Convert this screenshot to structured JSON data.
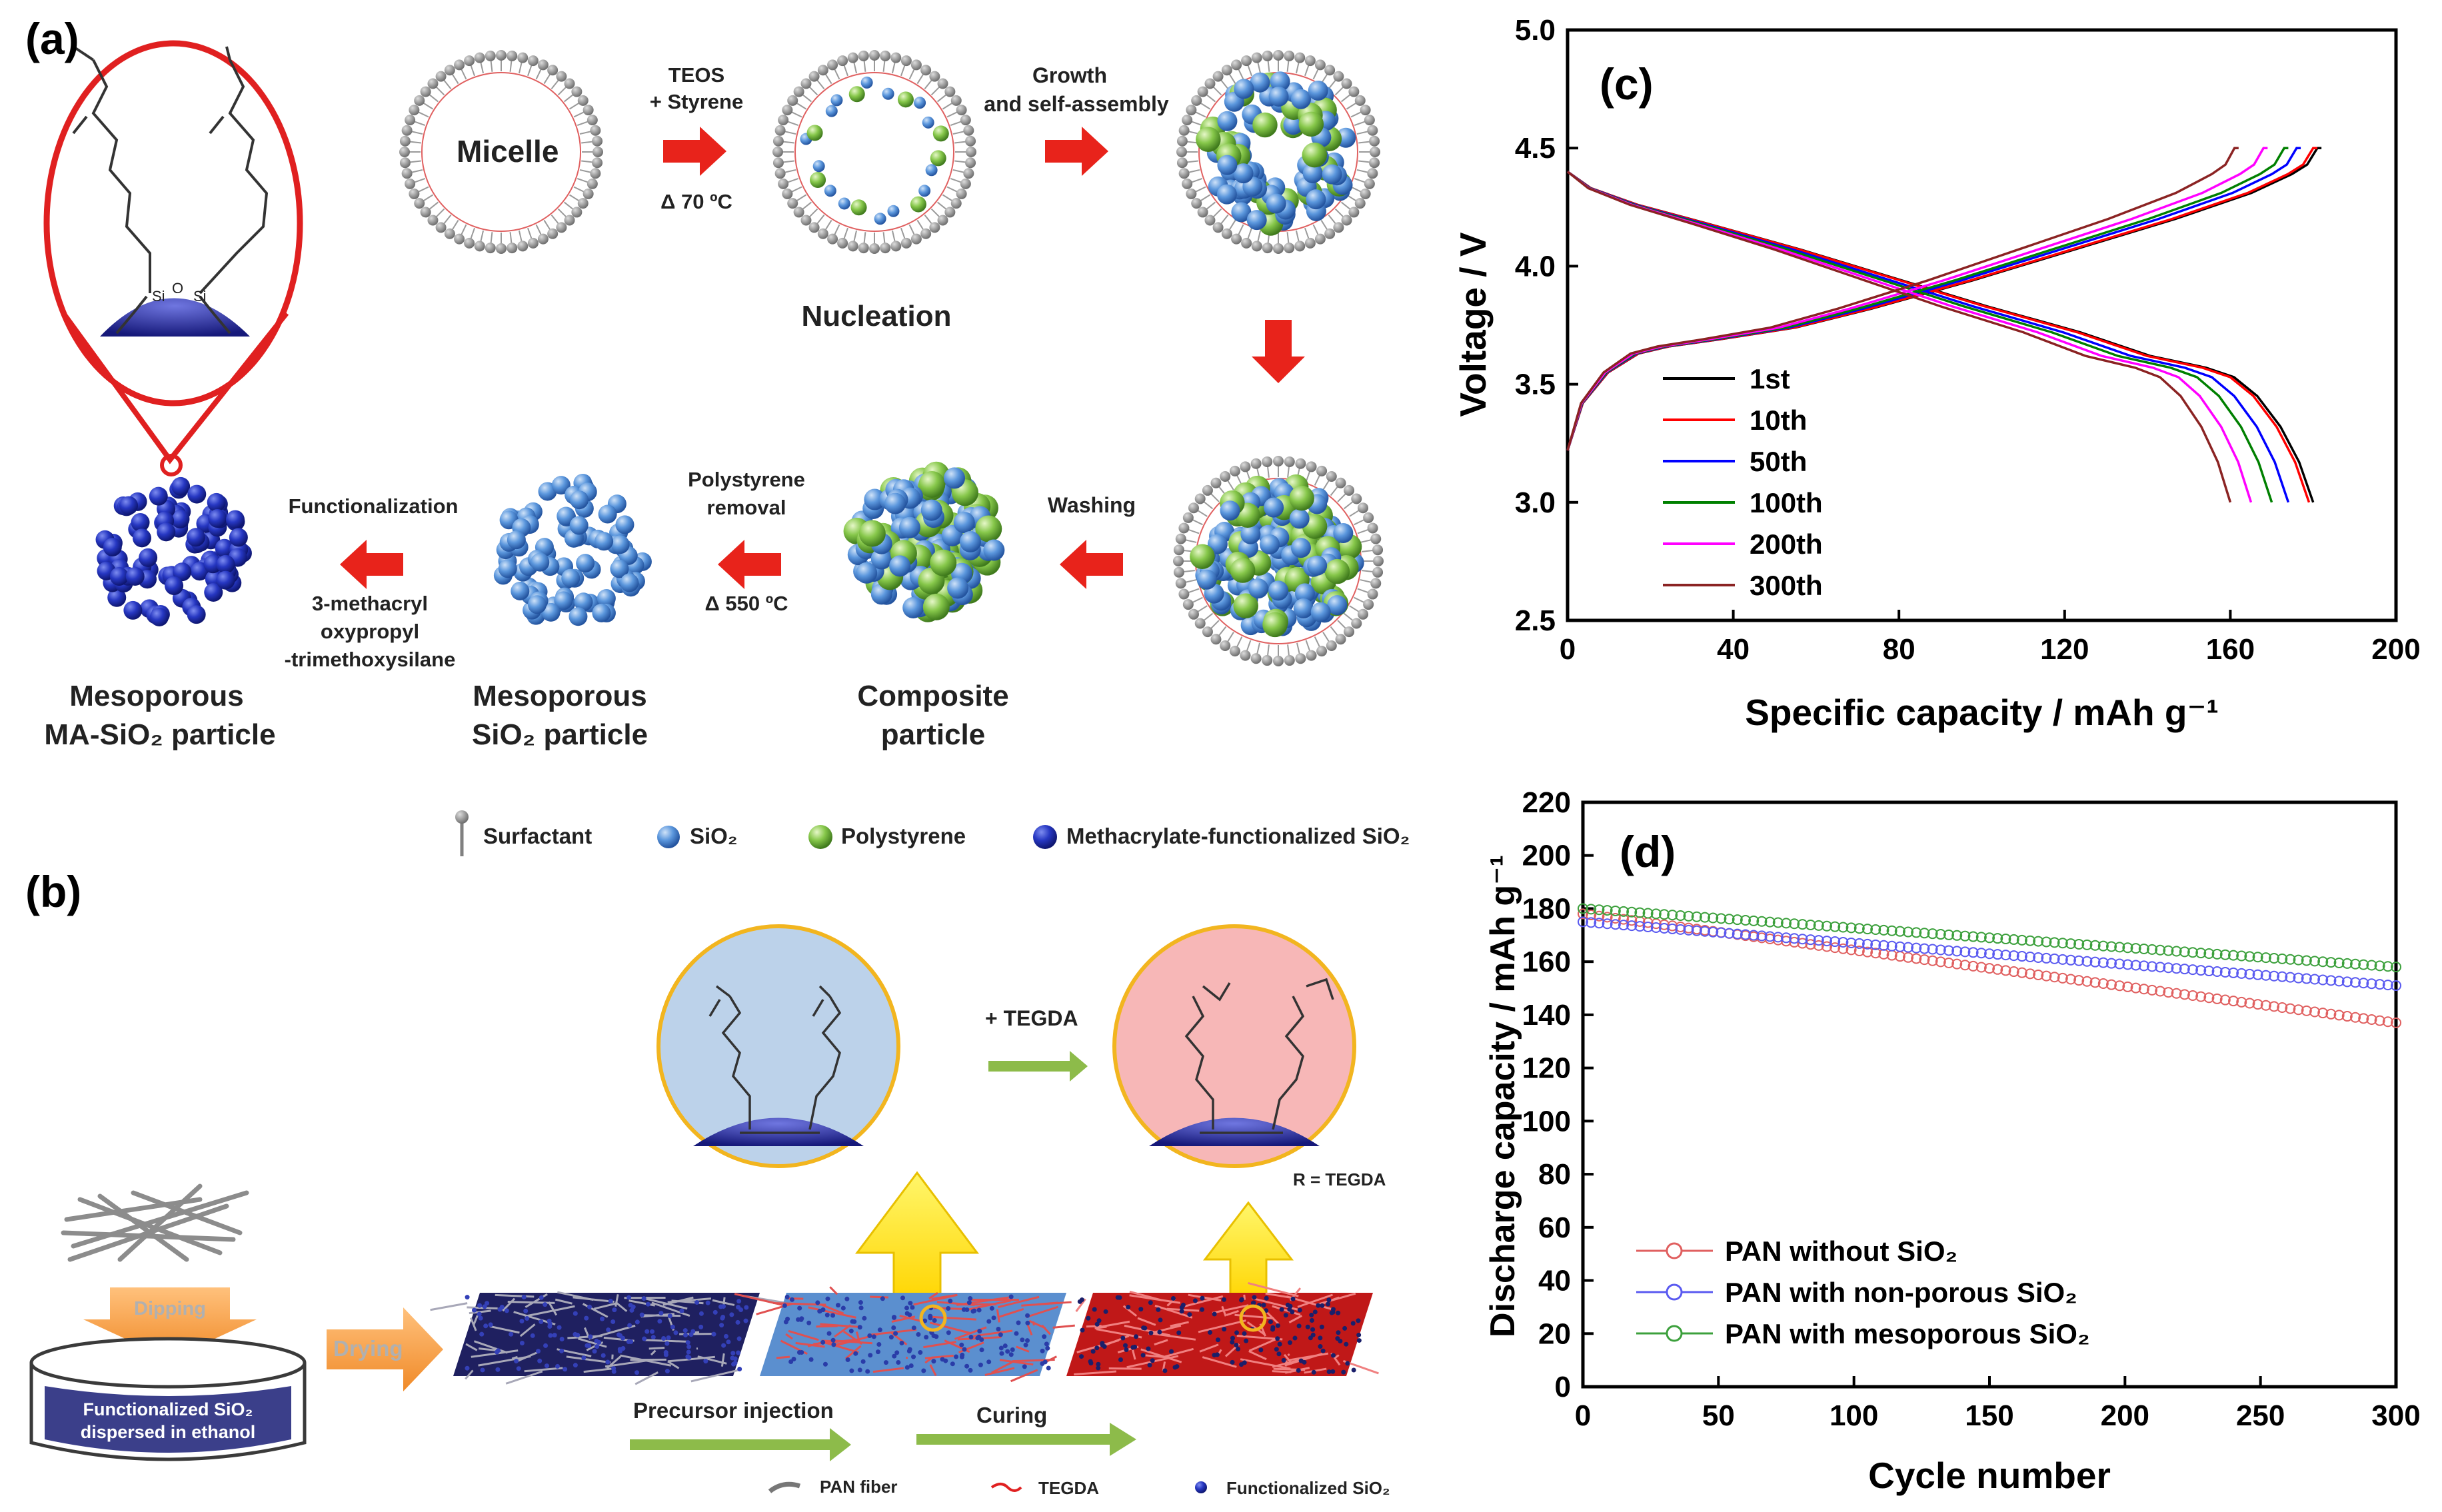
{
  "panel_a": {
    "label": "(a)",
    "micelle": "Micelle",
    "step1_l1": "TEOS",
    "step1_l2": "+ Styrene",
    "step1_temp": "Δ 70 ºC",
    "step2_l1": "Growth",
    "step2_l2": "and self-assembly",
    "nucleation": "Nucleation",
    "washing": "Washing",
    "composite_l1": "Composite",
    "composite_l2": "particle",
    "ps_l1": "Polystyrene",
    "ps_l2": "removal",
    "ps_temp": "Δ 550 ºC",
    "meso_l1": "Mesoporous",
    "meso_l2": "SiO₂ particle",
    "func": "Functionalization",
    "func_r1": "3-methacryl",
    "func_r2": "oxypropyl",
    "func_r3": "-trimethoxysilane",
    "mama_l1": "Mesoporous",
    "mama_l2": "MA-SiO₂ particle",
    "legend_surfactant": "Surfactant",
    "legend_sio2": "SiO₂",
    "legend_ps": "Polystyrene",
    "legend_ma": "Methacrylate-functionalized SiO₂",
    "colors": {
      "arrow": "#e8231b",
      "sio2": "#4a86d4",
      "ps": "#7dc243",
      "ma": "#1e2fa8",
      "surfactant": "#808080"
    }
  },
  "panel_b": {
    "label": "(b)",
    "tegda_step": "+ TEGDA",
    "r_eq": "R = TEGDA",
    "dipping": "Dipping",
    "solution_l1": "Functionalized SiO₂",
    "solution_l2": "dispersed in ethanol",
    "drying": "Drying",
    "precursor": "Precursor injection",
    "curing": "Curing",
    "legend_pan": "PAN fiber",
    "legend_tegda": "TEGDA",
    "legend_fsio2": "Functionalized SiO₂",
    "colors": {
      "green": "#8dbb4a",
      "orange": "#f39a3c",
      "yellow": "#ffe400",
      "blue_bg": "#bcd2ea",
      "pink_bg": "#f7b7b7"
    }
  },
  "panel_c": {
    "label": "(c)"
  },
  "panel_d": {
    "label": "(d)"
  },
  "chart_data": [
    {
      "type": "line",
      "id": "c",
      "xlabel": "Specific capacity / mAh g⁻¹",
      "ylabel": "Voltage / V",
      "xlim": [
        0,
        200
      ],
      "ylim": [
        2.5,
        5.0
      ],
      "xticks": [
        "0",
        "40",
        "80",
        "120",
        "160",
        "200"
      ],
      "yticks": [
        "2.5",
        "3.0",
        "3.5",
        "4.0",
        "4.5",
        "5.0"
      ],
      "series": [
        {
          "name": "1st",
          "color": "#000000",
          "charge_capacity": 181,
          "discharge_capacity": 180
        },
        {
          "name": "10th",
          "color": "#ff0000",
          "charge_capacity": 180,
          "discharge_capacity": 179
        },
        {
          "name": "50th",
          "color": "#0000ff",
          "charge_capacity": 176,
          "discharge_capacity": 174
        },
        {
          "name": "100th",
          "color": "#008000",
          "charge_capacity": 173,
          "discharge_capacity": 170
        },
        {
          "name": "200th",
          "color": "#ff00ff",
          "charge_capacity": 168,
          "discharge_capacity": 165
        },
        {
          "name": "300th",
          "color": "#8b2323",
          "charge_capacity": 161,
          "discharge_capacity": 160
        }
      ],
      "charge_profile": [
        [
          0,
          3.22
        ],
        [
          3,
          3.42
        ],
        [
          8,
          3.55
        ],
        [
          14,
          3.63
        ],
        [
          20,
          3.66
        ],
        [
          30,
          3.69
        ],
        [
          45,
          3.74
        ],
        [
          60,
          3.82
        ],
        [
          80,
          3.94
        ],
        [
          100,
          4.07
        ],
        [
          120,
          4.2
        ],
        [
          135,
          4.31
        ],
        [
          143,
          4.39
        ],
        [
          146,
          4.43
        ],
        [
          148,
          4.5
        ]
      ],
      "discharge_profile": [
        [
          0,
          4.4
        ],
        [
          5,
          4.33
        ],
        [
          15,
          4.26
        ],
        [
          30,
          4.18
        ],
        [
          50,
          4.07
        ],
        [
          70,
          3.95
        ],
        [
          90,
          3.83
        ],
        [
          110,
          3.72
        ],
        [
          125,
          3.62
        ],
        [
          137,
          3.57
        ],
        [
          143,
          3.53
        ],
        [
          148,
          3.45
        ],
        [
          153,
          3.32
        ],
        [
          157,
          3.17
        ],
        [
          160,
          3.0
        ]
      ]
    },
    {
      "type": "scatter",
      "id": "d",
      "xlabel": "Cycle number",
      "ylabel": "Discharge capacity / mAh g⁻¹",
      "xlim": [
        0,
        300
      ],
      "ylim": [
        0,
        220
      ],
      "xticks": [
        "0",
        "50",
        "100",
        "150",
        "200",
        "250",
        "300"
      ],
      "yticks": [
        "0",
        "20",
        "40",
        "60",
        "80",
        "100",
        "120",
        "140",
        "160",
        "180",
        "200",
        "220"
      ],
      "series": [
        {
          "name": "PAN without SiO₂",
          "color": "#e06060",
          "start": 178,
          "end": 137
        },
        {
          "name": "PAN with non-porous SiO₂",
          "color": "#5a5af0",
          "start": 175,
          "end": 151
        },
        {
          "name": "PAN with mesoporous SiO₂",
          "color": "#3ca03c",
          "start": 180,
          "end": 158
        }
      ]
    }
  ]
}
